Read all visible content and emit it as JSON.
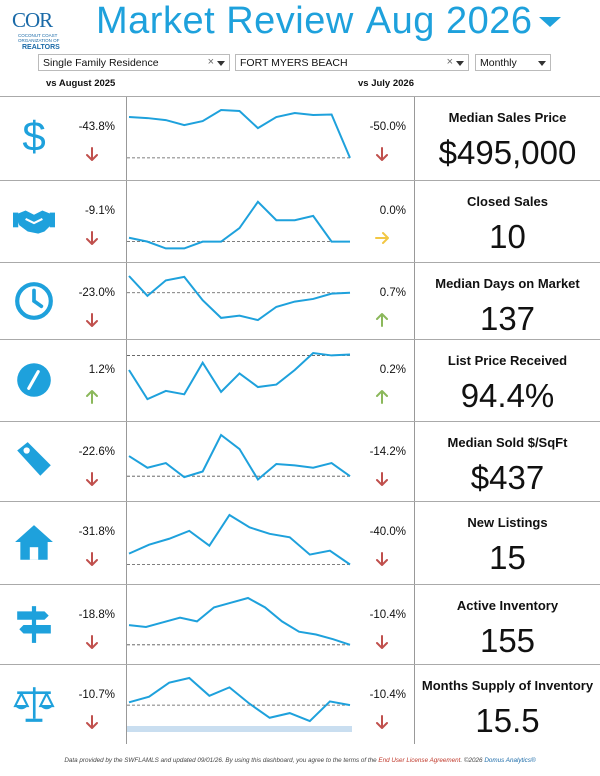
{
  "header": {
    "logo": {
      "brand": "COR",
      "subtitle": "COCONUT COAST ORGANIZATION OF",
      "realtors": "REALTORS"
    },
    "title_left": "Market Review",
    "title_right": "Aug 2026"
  },
  "filters": {
    "property_type": "Single Family Residence",
    "area": "FORT MYERS BEACH",
    "period": "Monthly",
    "clear_glyph": "×"
  },
  "columns": {
    "yoy": "vs August 2025",
    "mom": "vs July 2026"
  },
  "colors": {
    "accent": "#1ea1dc",
    "down": "#c0504d",
    "up": "#8bb85b",
    "flat": "#f2c744"
  },
  "metrics": [
    {
      "name": "Median Sales Price",
      "value": "$495,000",
      "icon": "dollar-icon",
      "yoy": "-43.8%",
      "yoy_dir": "down",
      "mom": "-50.0%",
      "mom_dir": "down",
      "spark": [
        0.86,
        0.84,
        0.8,
        0.7,
        0.78,
        1.0,
        0.98,
        0.64,
        0.86,
        0.94,
        0.9,
        0.91,
        0.05
      ],
      "ref": 0.05
    },
    {
      "name": "Closed Sales",
      "value": "10",
      "icon": "handshake-icon",
      "yoy": "-9.1%",
      "yoy_dir": "down",
      "mom": "0.0%",
      "mom_dir": "flat",
      "spark": [
        0.1,
        0.02,
        -0.12,
        -0.12,
        0.02,
        0.02,
        0.3,
        0.84,
        0.46,
        0.46,
        0.55,
        0.02,
        0.02
      ],
      "ref": 0.02
    },
    {
      "name": "Median Days on Market",
      "value": "137",
      "icon": "clock-icon",
      "yoy": "-23.0%",
      "yoy_dir": "down",
      "mom": "0.7%",
      "mom_dir": "up",
      "spark": [
        1.0,
        0.55,
        0.9,
        0.98,
        0.45,
        0.05,
        0.1,
        0.0,
        0.3,
        0.42,
        0.48,
        0.6,
        0.62
      ],
      "ref": 0.62
    },
    {
      "name": "List Price Received",
      "value": "94.4%",
      "icon": "gauge-icon",
      "yoy": "1.2%",
      "yoy_dir": "up",
      "mom": "0.2%",
      "mom_dir": "up",
      "spark": [
        0.65,
        0.05,
        0.22,
        0.15,
        0.8,
        0.2,
        0.58,
        0.3,
        0.35,
        0.65,
        1.0,
        0.95,
        0.97
      ],
      "ref": 0.95
    },
    {
      "name": "Median Sold $/SqFt",
      "value": "$437",
      "icon": "tag-icon",
      "yoy": "-22.6%",
      "yoy_dir": "down",
      "mom": "-14.2%",
      "mom_dir": "down",
      "spark": [
        0.55,
        0.3,
        0.4,
        0.1,
        0.22,
        1.0,
        0.7,
        0.05,
        0.38,
        0.35,
        0.3,
        0.4,
        0.12
      ],
      "ref": 0.12
    },
    {
      "name": "New Listings",
      "value": "15",
      "icon": "house-icon",
      "yoy": "-31.8%",
      "yoy_dir": "down",
      "mom": "-40.0%",
      "mom_dir": "down",
      "spark": [
        0.22,
        0.4,
        0.52,
        0.68,
        0.38,
        1.0,
        0.75,
        0.62,
        0.55,
        0.2,
        0.28,
        0.0
      ],
      "ref": 0.0
    },
    {
      "name": "Active Inventory",
      "value": "155",
      "icon": "signpost-icon",
      "yoy": "-18.8%",
      "yoy_dir": "down",
      "mom": "-10.4%",
      "mom_dir": "down",
      "spark": [
        0.42,
        0.38,
        0.48,
        0.58,
        0.5,
        0.8,
        0.9,
        1.0,
        0.8,
        0.5,
        0.28,
        0.22,
        0.12,
        0.0
      ],
      "ref": 0.0
    },
    {
      "name": "Months Supply of Inventory",
      "value": "15.5",
      "icon": "scales-icon",
      "yoy": "-10.7%",
      "yoy_dir": "down",
      "mom": "-10.4%",
      "mom_dir": "down",
      "spark": [
        0.48,
        0.6,
        0.9,
        1.0,
        0.62,
        0.8,
        0.45,
        0.15,
        0.25,
        0.08,
        0.5,
        0.42
      ],
      "ref": 0.42
    }
  ],
  "footer": {
    "text": "Data provided by the SWFLAMLS and updated 09/01/26.  By using this dashboard, you agree to the terms of the ",
    "link": "End User License Agreement",
    "tail": ".  ©2026 ",
    "brand": "Domus Analytics®"
  }
}
